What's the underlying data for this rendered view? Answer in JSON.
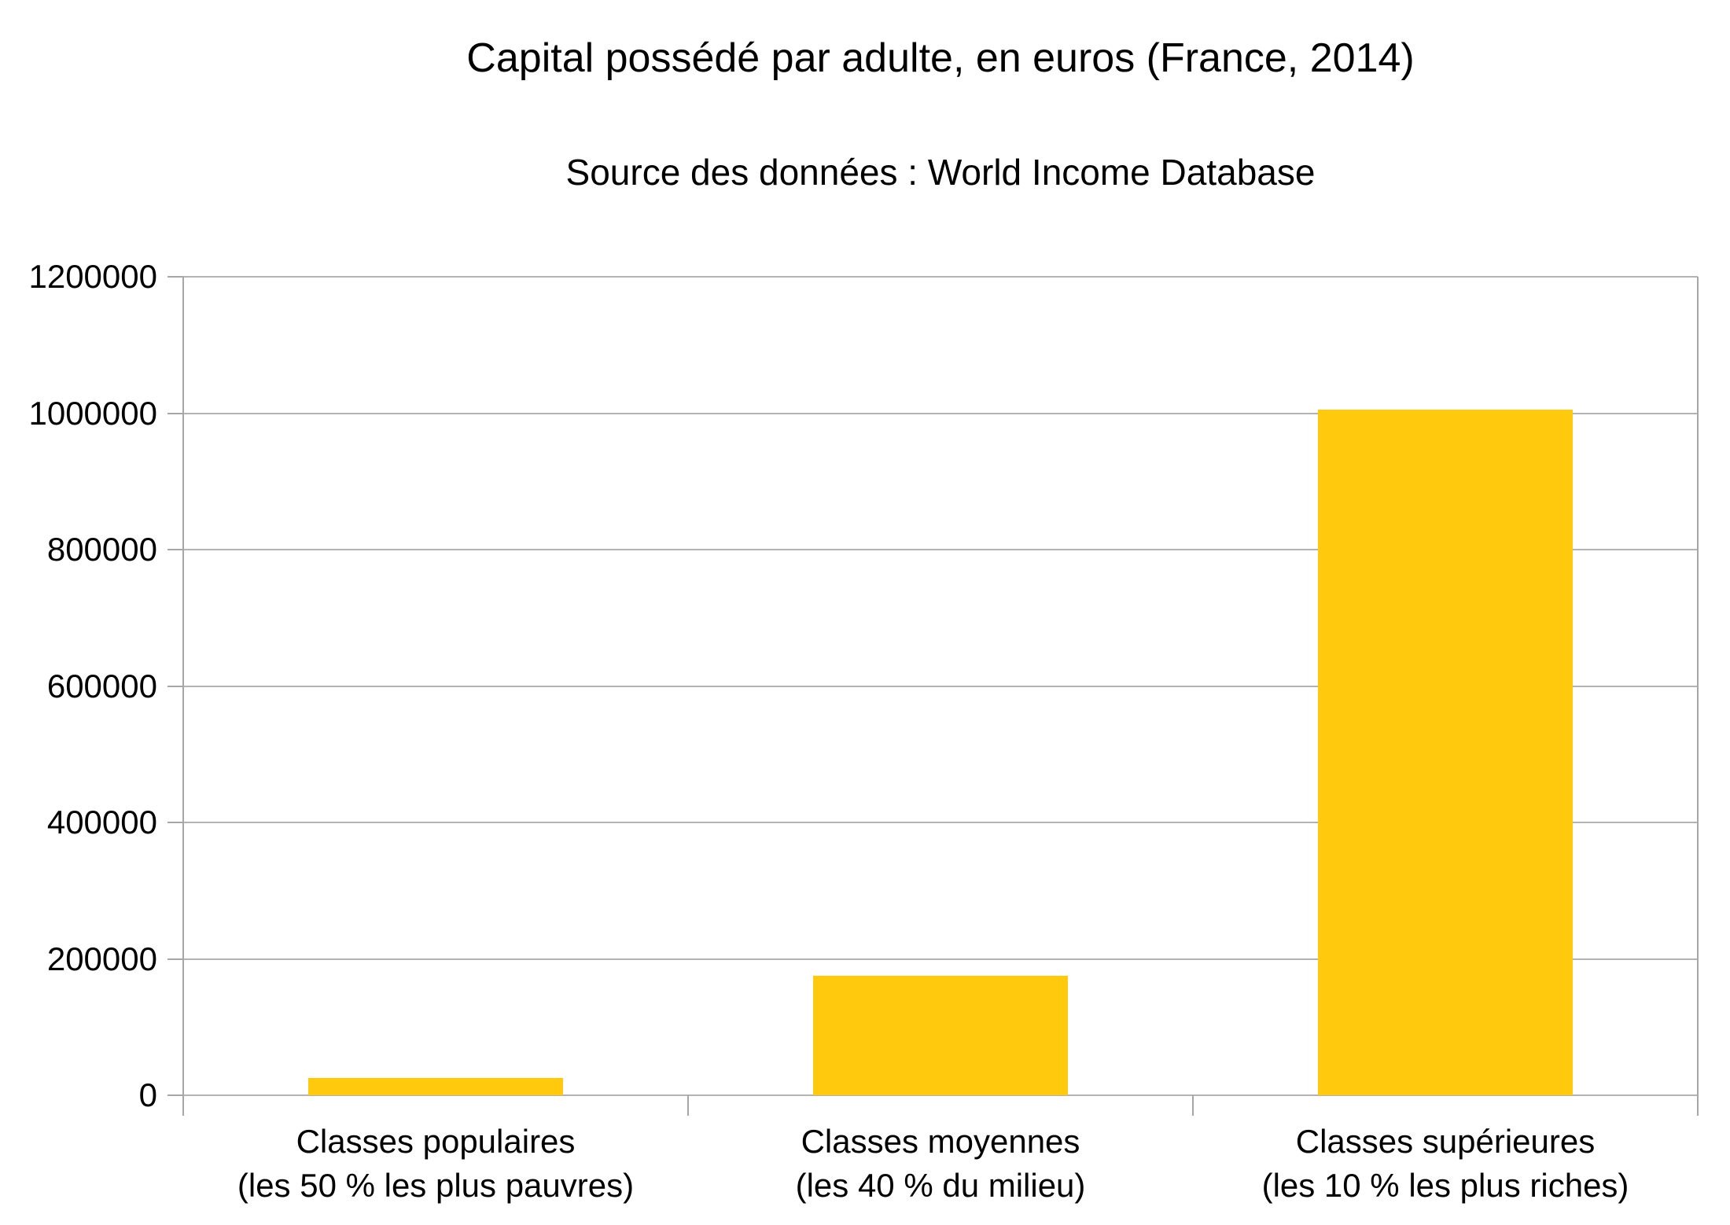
{
  "chart_data": {
    "type": "bar",
    "title": "Capital possédé par adulte, en euros (France, 2014)",
    "subtitle": "Source des données : World Income Database",
    "categories": [
      {
        "line1": "Classes populaires",
        "line2": "(les 50 % les plus pauvres)"
      },
      {
        "line1": "Classes moyennes",
        "line2": "(les 40 % du milieu)"
      },
      {
        "line1": "Classes supérieures",
        "line2": "(les 10 % les plus riches)"
      }
    ],
    "values": [
      25000,
      175000,
      1005000
    ],
    "unit": "euros",
    "xlabel": "",
    "ylabel": "",
    "ylim": [
      0,
      1200000
    ],
    "ytick_step": 200000,
    "ytick_labels": [
      "0",
      "200000",
      "400000",
      "600000",
      "800000",
      "1000000",
      "1200000"
    ],
    "grid": true,
    "legend": false,
    "bar_color": "#FFC90E",
    "grid_color": "#B3B3B3",
    "axis_color": "#A6A6A6",
    "text_color": "#000000"
  }
}
